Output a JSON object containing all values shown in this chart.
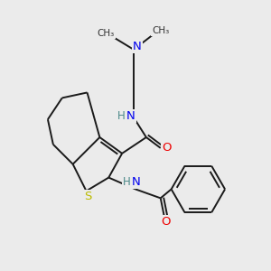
{
  "bg_color": "#ebebeb",
  "atom_colors": {
    "C": "#000000",
    "N": "#0000ee",
    "O": "#ee0000",
    "S": "#bbbb00",
    "H": "#4a8888"
  },
  "bond_color": "#1a1a1a",
  "bond_width": 1.4,
  "figsize": [
    3.0,
    3.0
  ],
  "dpi": 100
}
